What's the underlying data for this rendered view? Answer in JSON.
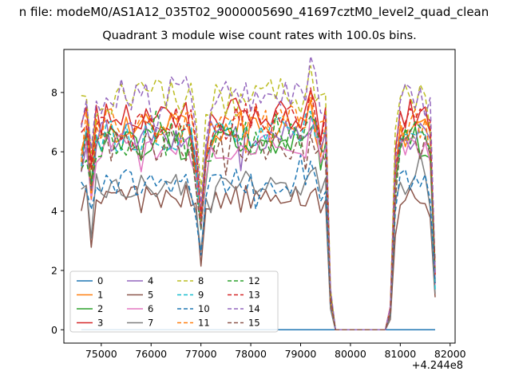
{
  "figure": {
    "suptitle": "n file: modeM0/AS1A12_035T02_9000005690_41697cztM0_level2_quad_clean",
    "title": "Quadrant 3 module wise count rates with 100.0s bins.",
    "offset_text": "+4.244e8"
  },
  "chart_data": {
    "type": "line",
    "title": "Quadrant 3 module wise count rates with 100.0s bins.",
    "xlabel": "",
    "ylabel": "",
    "x_axis_offset": "+4.244e8",
    "x_ticks": [
      75000,
      76000,
      77000,
      78000,
      79000,
      80000,
      81000,
      82000
    ],
    "x_tick_labels": [
      "75000",
      "76000",
      "77000",
      "78000",
      "79000",
      "80000",
      "81000",
      "82000"
    ],
    "y_ticks": [
      0,
      2,
      4,
      6,
      8
    ],
    "y_tick_labels": [
      "0",
      "2",
      "4",
      "6",
      "8"
    ],
    "xlim": [
      74250,
      82100
    ],
    "ylim": [
      -0.45,
      9.45
    ],
    "grid": false,
    "legend_position": "lower-left-inside",
    "legend_columns": 4,
    "x_start": 74600,
    "x_step": 100,
    "n_points": 72,
    "envelope": [
      [
        74600,
        0.9
      ],
      [
        74700,
        1.02
      ],
      [
        74800,
        0.72
      ],
      [
        74900,
        0.98
      ],
      [
        75100,
        1.0
      ],
      [
        76800,
        1.0
      ],
      [
        76950,
        0.75
      ],
      [
        77000,
        0.55
      ],
      [
        77100,
        0.85
      ],
      [
        77250,
        1.0
      ],
      [
        79100,
        1.02
      ],
      [
        79250,
        1.15
      ],
      [
        79350,
        0.92
      ],
      [
        79550,
        1.0
      ],
      [
        79610,
        0.0
      ],
      [
        80790,
        0.0
      ],
      [
        80840,
        0.55
      ],
      [
        80950,
        0.98
      ],
      [
        81450,
        1.02
      ],
      [
        81600,
        0.92
      ],
      [
        81700,
        0.27
      ]
    ],
    "series": [
      {
        "label": "0",
        "color": "#1f77b4",
        "style": "solid",
        "level": 0.0,
        "seed": 11
      },
      {
        "label": "1",
        "color": "#ff7f0e",
        "style": "solid",
        "level": 6.8,
        "seed": 21
      },
      {
        "label": "2",
        "color": "#2ca02c",
        "style": "solid",
        "level": 6.3,
        "seed": 31
      },
      {
        "label": "3",
        "color": "#d62728",
        "style": "solid",
        "level": 7.2,
        "seed": 41
      },
      {
        "label": "4",
        "color": "#9467bd",
        "style": "solid",
        "level": 6.5,
        "seed": 51
      },
      {
        "label": "5",
        "color": "#8c564b",
        "style": "solid",
        "level": 4.4,
        "seed": 61
      },
      {
        "label": "6",
        "color": "#e377c2",
        "style": "solid",
        "level": 6.1,
        "seed": 71
      },
      {
        "label": "7",
        "color": "#7f7f7f",
        "style": "solid",
        "level": 4.9,
        "seed": 81
      },
      {
        "label": "8",
        "color": "#bcbd22",
        "style": "dashed",
        "level": 7.8,
        "seed": 91
      },
      {
        "label": "9",
        "color": "#17becf",
        "style": "dashed",
        "level": 6.6,
        "seed": 101
      },
      {
        "label": "10",
        "color": "#1f77b4",
        "style": "dashed",
        "level": 5.0,
        "seed": 111
      },
      {
        "label": "11",
        "color": "#ff7f0e",
        "style": "dashed",
        "level": 6.9,
        "seed": 121
      },
      {
        "label": "12",
        "color": "#2ca02c",
        "style": "dashed",
        "level": 6.4,
        "seed": 131
      },
      {
        "label": "13",
        "color": "#d62728",
        "style": "dashed",
        "level": 7.0,
        "seed": 141
      },
      {
        "label": "14",
        "color": "#9467bd",
        "style": "dashed",
        "level": 7.9,
        "seed": 151
      },
      {
        "label": "15",
        "color": "#8c564b",
        "style": "dashed",
        "level": 6.2,
        "seed": 161
      }
    ]
  }
}
